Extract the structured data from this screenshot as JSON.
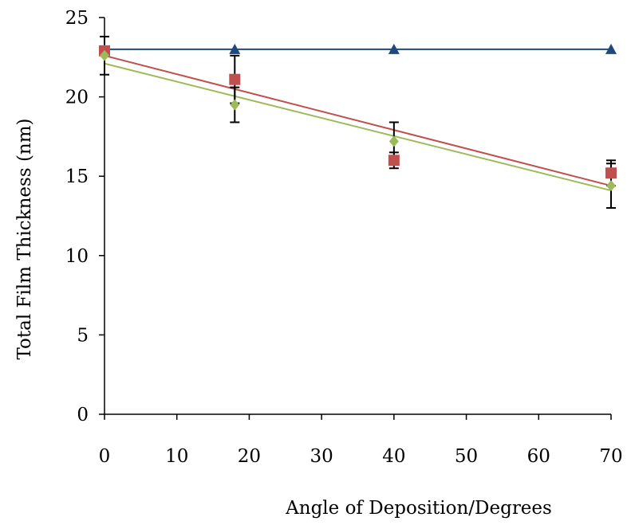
{
  "chart_data": {
    "type": "scatter",
    "title": "",
    "xlabel": "Angle of Deposition/Degrees",
    "ylabel": "Total Film Thickness (nm)",
    "xlim": [
      0,
      70
    ],
    "ylim": [
      0,
      25
    ],
    "x_ticks": [
      0,
      10,
      20,
      30,
      40,
      50,
      60,
      70
    ],
    "y_ticks": [
      0,
      5,
      10,
      15,
      20,
      25
    ],
    "grid": false,
    "legend": "none",
    "series": [
      {
        "marker": "triangle",
        "color": "#1F497D",
        "x": [
          0,
          18,
          40,
          70
        ],
        "y": [
          23.0,
          23.0,
          23.0,
          23.0
        ],
        "error": [
          0,
          0,
          0,
          0
        ],
        "trendline": {
          "start": [
            0,
            23.0
          ],
          "end": [
            70,
            23.0
          ],
          "color": "#1F497D"
        }
      },
      {
        "marker": "square",
        "color": "#C0504D",
        "x": [
          0,
          18,
          40,
          70
        ],
        "y": [
          22.9,
          21.1,
          16.0,
          15.2
        ],
        "error": [
          0.0,
          1.5,
          0.5,
          0.8
        ],
        "trendline": {
          "start": [
            0,
            22.6
          ],
          "end": [
            70,
            14.4
          ],
          "color": "#C0504D"
        }
      },
      {
        "marker": "diamond",
        "color": "#9BBB59",
        "x": [
          0,
          18,
          40,
          70
        ],
        "y": [
          22.6,
          19.5,
          17.2,
          14.4
        ],
        "error": [
          1.2,
          1.1,
          1.2,
          1.4
        ],
        "trendline": {
          "start": [
            0,
            22.1
          ],
          "end": [
            70,
            14.1
          ],
          "color": "#9BBB59"
        }
      }
    ]
  }
}
